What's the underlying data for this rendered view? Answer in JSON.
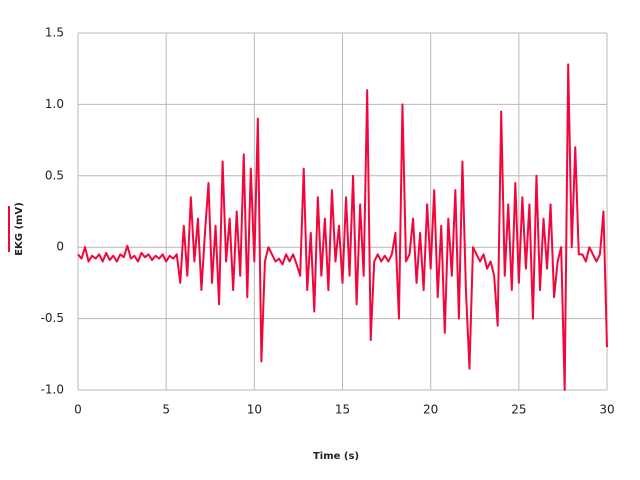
{
  "chart_data": {
    "type": "line",
    "xlabel": "Time (s)",
    "series": [
      {
        "name": "EKG (mV)",
        "color": "#f2073c",
        "values": [
          -0.05,
          -0.08,
          0.0,
          -0.1,
          -0.06,
          -0.08,
          -0.05,
          -0.1,
          -0.04,
          -0.09,
          -0.06,
          -0.1,
          -0.05,
          -0.07,
          0.01,
          -0.08,
          -0.06,
          -0.1,
          -0.04,
          -0.07,
          -0.05,
          -0.09,
          -0.06,
          -0.08,
          -0.05,
          -0.1,
          -0.06,
          -0.08,
          -0.05,
          -0.25,
          0.15,
          -0.2,
          0.35,
          -0.1,
          0.2,
          -0.3,
          0.1,
          0.45,
          -0.25,
          0.15,
          -0.4,
          0.6,
          -0.1,
          0.2,
          -0.3,
          0.25,
          -0.2,
          0.65,
          -0.35,
          0.55,
          -0.1,
          0.9,
          -0.8,
          -0.1,
          0.0,
          -0.05,
          -0.1,
          -0.08,
          -0.12,
          -0.05,
          -0.1,
          -0.05,
          -0.12,
          -0.2,
          0.55,
          -0.3,
          0.1,
          -0.45,
          0.35,
          -0.2,
          0.2,
          -0.3,
          0.4,
          -0.1,
          0.15,
          -0.25,
          0.35,
          -0.2,
          0.5,
          -0.4,
          0.3,
          -0.2,
          1.1,
          -0.65,
          -0.1,
          -0.05,
          -0.1,
          -0.06,
          -0.1,
          -0.05,
          0.1,
          -0.5,
          1.0,
          -0.1,
          -0.05,
          0.2,
          -0.25,
          0.1,
          -0.3,
          0.3,
          -0.15,
          0.4,
          -0.35,
          0.15,
          -0.6,
          0.2,
          -0.2,
          0.4,
          -0.5,
          0.6,
          -0.3,
          -0.85,
          0.0,
          -0.05,
          -0.1,
          -0.05,
          -0.15,
          -0.1,
          -0.2,
          -0.55,
          0.95,
          -0.2,
          0.3,
          -0.3,
          0.45,
          -0.25,
          0.35,
          -0.15,
          0.3,
          -0.5,
          0.5,
          -0.3,
          0.2,
          -0.15,
          0.3,
          -0.35,
          -0.1,
          0.0,
          -1.0,
          1.28,
          0.0,
          0.7,
          -0.05,
          -0.05,
          -0.1,
          0.0,
          -0.05,
          -0.1,
          -0.05,
          0.25,
          -0.7
        ]
      }
    ],
    "x": [
      0,
      0.2,
      0.4,
      0.6,
      0.8,
      1,
      1.2,
      1.4,
      1.6,
      1.8,
      2,
      2.2,
      2.4,
      2.6,
      2.8,
      3,
      3.2,
      3.4,
      3.6,
      3.8,
      4,
      4.2,
      4.4,
      4.6,
      4.8,
      5,
      5.2,
      5.4,
      5.6,
      5.8,
      6,
      6.2,
      6.4,
      6.6,
      6.8,
      7,
      7.2,
      7.4,
      7.6,
      7.8,
      8,
      8.2,
      8.4,
      8.6,
      8.8,
      9,
      9.2,
      9.4,
      9.6,
      9.8,
      10,
      10.2,
      10.4,
      10.6,
      10.8,
      11,
      11.2,
      11.4,
      11.6,
      11.8,
      12,
      12.2,
      12.4,
      12.6,
      12.8,
      13,
      13.2,
      13.4,
      13.6,
      13.8,
      14,
      14.2,
      14.4,
      14.6,
      14.8,
      15,
      15.2,
      15.4,
      15.6,
      15.8,
      16,
      16.2,
      16.4,
      16.6,
      16.8,
      17,
      17.2,
      17.4,
      17.6,
      17.8,
      18,
      18.2,
      18.4,
      18.6,
      18.8,
      19,
      19.2,
      19.4,
      19.6,
      19.8,
      20,
      20.2,
      20.4,
      20.6,
      20.8,
      21,
      21.2,
      21.4,
      21.6,
      21.8,
      22,
      22.2,
      22.4,
      22.6,
      22.8,
      23,
      23.2,
      23.4,
      23.6,
      23.8,
      24,
      24.2,
      24.4,
      24.6,
      24.8,
      25,
      25.2,
      25.4,
      25.6,
      25.8,
      26,
      26.2,
      26.4,
      26.6,
      26.8,
      27,
      27.2,
      27.4,
      27.6,
      27.8,
      28,
      28.2,
      28.4,
      28.6,
      28.8,
      29,
      29.2,
      29.4,
      29.6,
      29.8,
      30
    ],
    "xlim": [
      0,
      30
    ],
    "xticks": [
      0,
      5,
      10,
      15,
      20,
      25,
      30
    ],
    "ylim": [
      -1,
      1.5
    ],
    "yticks": [
      {
        "value": -1,
        "label": "-1.0"
      },
      -0.5,
      0,
      0.5,
      {
        "value": 1,
        "label": "1.0"
      },
      1.5
    ],
    "grid": true
  }
}
